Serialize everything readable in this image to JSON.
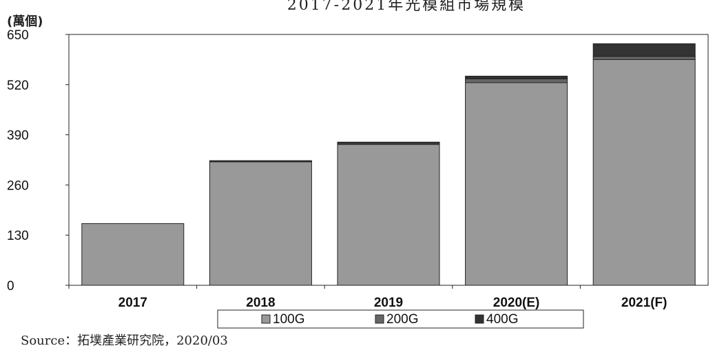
{
  "chart_data": {
    "type": "bar",
    "stacked": true,
    "title": "2017-2021年光模組市場規模",
    "unit_label": "(萬個)",
    "ylim": [
      0,
      650
    ],
    "y_ticks": [
      0,
      130,
      260,
      390,
      520,
      650
    ],
    "categories": [
      "2017",
      "2018",
      "2019",
      "2020(E)",
      "2021(F)"
    ],
    "series": [
      {
        "name": "100G",
        "color": "#999999",
        "values": [
          160,
          320,
          365,
          525,
          585
        ]
      },
      {
        "name": "200G",
        "color": "#666666",
        "values": [
          0,
          0,
          3,
          10,
          8
        ]
      },
      {
        "name": "400G",
        "color": "#333333",
        "values": [
          0,
          3,
          3,
          7,
          33
        ]
      }
    ],
    "legend_position": "bottom",
    "grid": false,
    "source": "Source：拓墣產業研究院，2020/03"
  }
}
